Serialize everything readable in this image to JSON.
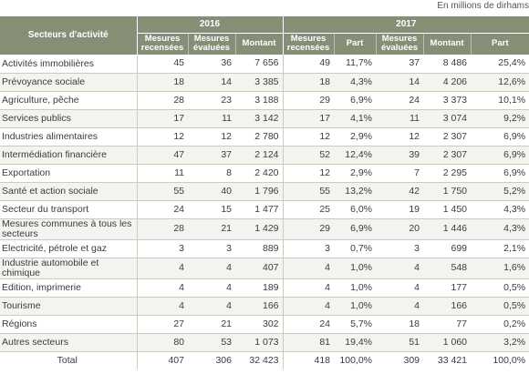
{
  "unit_note": "En millions de dirhams",
  "headers": {
    "sector": "Secteurs d'activité",
    "year_2016": "2016",
    "year_2017": "2017",
    "mesures_recensees": "Mesures recensées",
    "mesures_evaluees": "Mesures évaluées",
    "montant": "Montant",
    "part": "Part"
  },
  "rows": [
    {
      "sector": "Activités immobilières",
      "c2016": [
        "45",
        "36",
        "7 656"
      ],
      "c2017": [
        "49",
        "11,7%",
        "37",
        "8 486",
        "25,4%"
      ]
    },
    {
      "sector": "Prévoyance sociale",
      "c2016": [
        "18",
        "14",
        "3 385"
      ],
      "c2017": [
        "18",
        "4,3%",
        "14",
        "4 206",
        "12,6%"
      ]
    },
    {
      "sector": "Agriculture, pêche",
      "c2016": [
        "28",
        "23",
        "3 188"
      ],
      "c2017": [
        "29",
        "6,9%",
        "24",
        "3 373",
        "10,1%"
      ]
    },
    {
      "sector": "Services publics",
      "c2016": [
        "17",
        "11",
        "3 142"
      ],
      "c2017": [
        "17",
        "4,1%",
        "11",
        "3 074",
        "9,2%"
      ]
    },
    {
      "sector": "Industries alimentaires",
      "c2016": [
        "12",
        "12",
        "2 780"
      ],
      "c2017": [
        "12",
        "2,9%",
        "12",
        "2 307",
        "6,9%"
      ]
    },
    {
      "sector": "Intermédiation financière",
      "c2016": [
        "47",
        "37",
        "2 124"
      ],
      "c2017": [
        "52",
        "12,4%",
        "39",
        "2 307",
        "6,9%"
      ]
    },
    {
      "sector": "Exportation",
      "c2016": [
        "11",
        "8",
        "2 420"
      ],
      "c2017": [
        "12",
        "2,9%",
        "7",
        "2 295",
        "6,9%"
      ]
    },
    {
      "sector": "Santé et action sociale",
      "c2016": [
        "55",
        "40",
        "1 796"
      ],
      "c2017": [
        "55",
        "13,2%",
        "42",
        "1 750",
        "5,2%"
      ]
    },
    {
      "sector": "Secteur du transport",
      "c2016": [
        "24",
        "15",
        "1 477"
      ],
      "c2017": [
        "25",
        "6,0%",
        "19",
        "1 450",
        "4,3%"
      ]
    },
    {
      "sector": "Mesures communes à tous les secteurs",
      "c2016": [
        "28",
        "21",
        "1 429"
      ],
      "c2017": [
        "29",
        "6,9%",
        "20",
        "1 446",
        "4,3%"
      ]
    },
    {
      "sector": "Electricité, pétrole et gaz",
      "c2016": [
        "3",
        "3",
        "889"
      ],
      "c2017": [
        "3",
        "0,7%",
        "3",
        "699",
        "2,1%"
      ]
    },
    {
      "sector": "Industrie automobile et chimique",
      "c2016": [
        "4",
        "4",
        "407"
      ],
      "c2017": [
        "4",
        "1,0%",
        "4",
        "548",
        "1,6%"
      ]
    },
    {
      "sector": "Edition, imprimerie",
      "c2016": [
        "4",
        "4",
        "189"
      ],
      "c2017": [
        "4",
        "1,0%",
        "4",
        "177",
        "0,5%"
      ]
    },
    {
      "sector": "Tourisme",
      "c2016": [
        "4",
        "4",
        "166"
      ],
      "c2017": [
        "4",
        "1,0%",
        "4",
        "166",
        "0,5%"
      ]
    },
    {
      "sector": "Régions",
      "c2016": [
        "27",
        "21",
        "302"
      ],
      "c2017": [
        "24",
        "5,7%",
        "18",
        "77",
        "0,2%"
      ]
    },
    {
      "sector": "Autres secteurs",
      "c2016": [
        "80",
        "53",
        "1 073"
      ],
      "c2017": [
        "81",
        "19,4%",
        "51",
        "1 060",
        "3,2%"
      ]
    }
  ],
  "total": {
    "label": "Total",
    "c2016": [
      "407",
      "306",
      "32 423"
    ],
    "c2017": [
      "418",
      "100,0%",
      "309",
      "33 421",
      "100,0%"
    ]
  },
  "colors": {
    "header_bg": "#848f76",
    "row_alt": "#f3f3ef",
    "border": "#c9cdc0"
  }
}
